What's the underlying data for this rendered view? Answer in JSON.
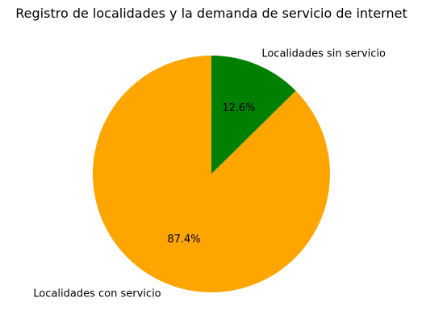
{
  "chart_data": {
    "type": "pie",
    "title": "Registro de localidades y la demanda de servicio de internet",
    "start_angle_deg": 90,
    "direction": "clockwise",
    "slices": [
      {
        "label": "Localidades sin servicio",
        "value": 12.6,
        "pct_label": "12.6%",
        "color": "#008000"
      },
      {
        "label": "Localidades con servicio",
        "value": 87.4,
        "pct_label": "87.4%",
        "color": "#ffa500"
      }
    ]
  }
}
